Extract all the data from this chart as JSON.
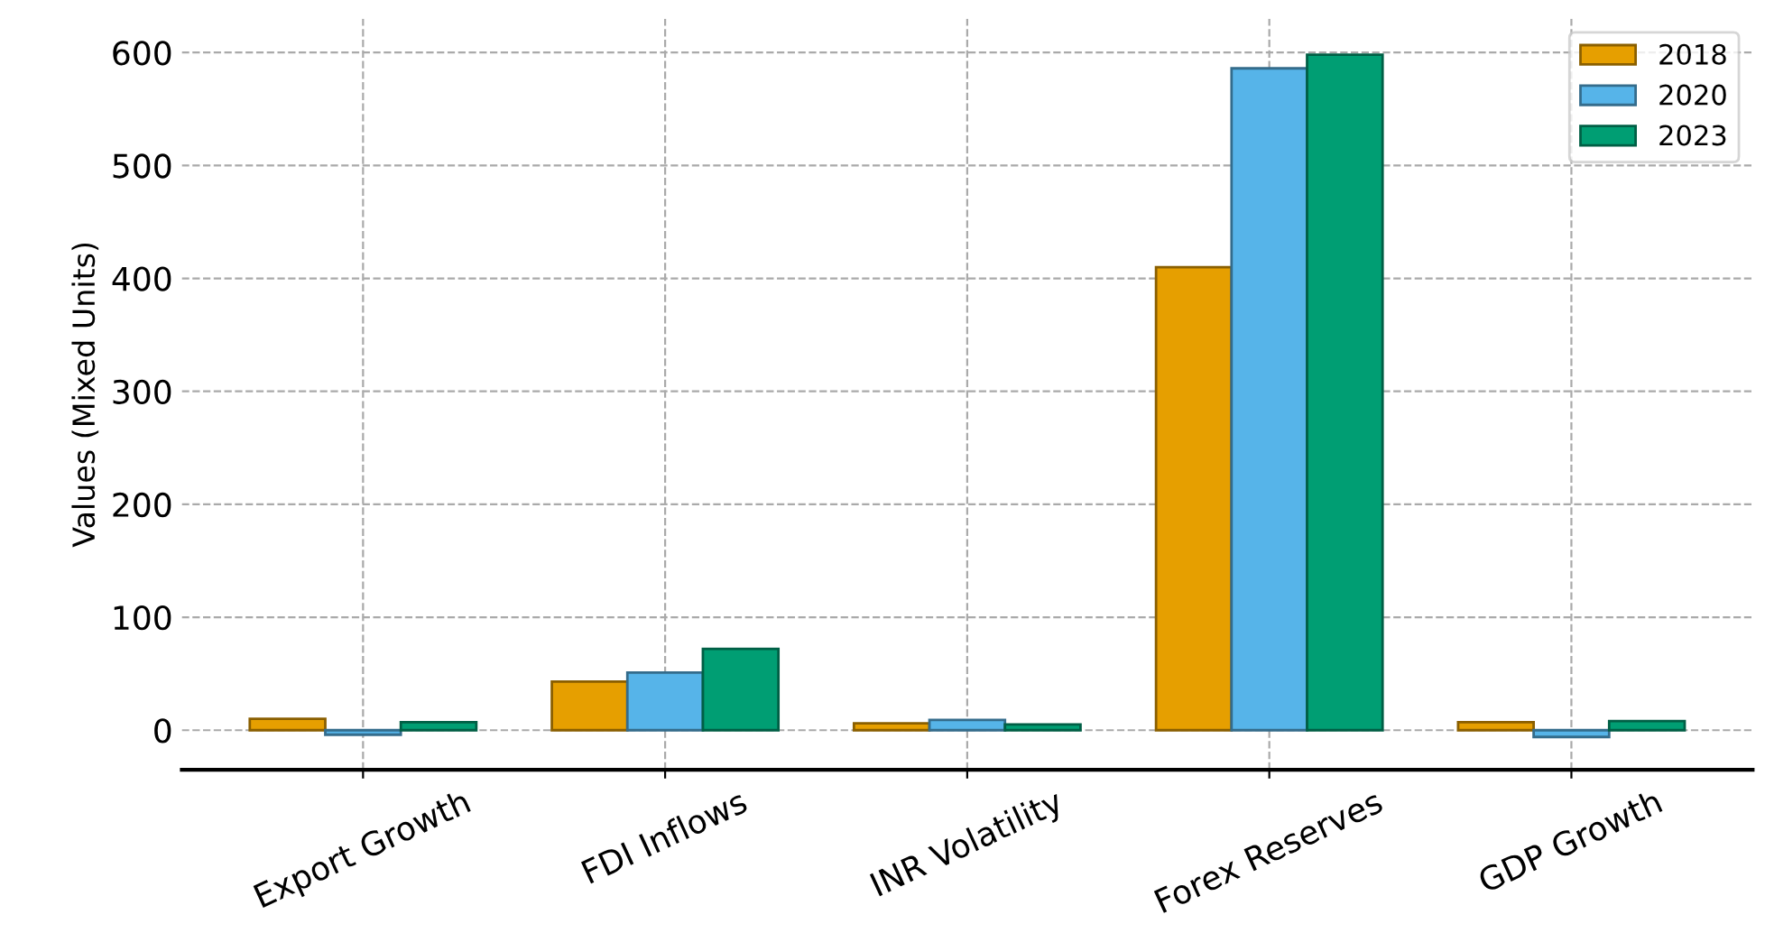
{
  "chart_data": {
    "type": "bar",
    "ylabel": "Values (Mixed Units)",
    "categories": [
      "Export Growth",
      "FDI Inflows",
      "INR Volatility",
      "Forex Reserves",
      "GDP Growth"
    ],
    "series": [
      {
        "name": "2018",
        "color": "#e69f00",
        "values": [
          10,
          43,
          6,
          410,
          7
        ]
      },
      {
        "name": "2020",
        "color": "#56b4e9",
        "values": [
          -4,
          51,
          9,
          586,
          -6
        ]
      },
      {
        "name": "2023",
        "color": "#009e73",
        "values": [
          7,
          72,
          5,
          598,
          8
        ]
      }
    ],
    "ylim": [
      -35,
      630
    ],
    "yticks": [
      0,
      100,
      200,
      300,
      400,
      500,
      600
    ],
    "grid": true,
    "legend": "top right"
  }
}
